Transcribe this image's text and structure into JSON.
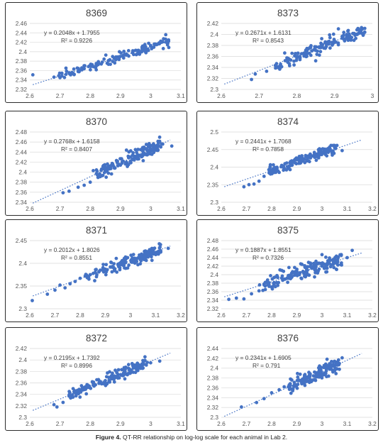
{
  "figure": {
    "caption_label": "Figure 4.",
    "caption_text": "QT-RR relationship on log-log scale for each animal in Lab 2."
  },
  "chart_data": [
    {
      "type": "scatter",
      "title": "8369",
      "equation": "y = 0.2048x + 1.7955",
      "r2_label": "R² = 0.9226",
      "trendline": {
        "slope": 0.2048,
        "intercept": 1.7955
      },
      "xlim": [
        2.6,
        3.1
      ],
      "xticks": [
        "2.6",
        "2.7",
        "2.8",
        "2.9",
        "3",
        "3.1"
      ],
      "ylim": [
        2.32,
        2.46
      ],
      "yticks": [
        "2.32",
        "2.34",
        "2.36",
        "2.38",
        "2.4",
        "2.42",
        "2.44",
        "2.46"
      ],
      "grid": true,
      "n_points": 120,
      "noise": 0.006,
      "points": [
        [
          2.61,
          2.351
        ],
        [
          2.68,
          2.346
        ],
        [
          2.7,
          2.345
        ],
        [
          2.72,
          2.352
        ],
        [
          2.74,
          2.356
        ],
        [
          2.76,
          2.358
        ],
        [
          2.78,
          2.364
        ],
        [
          2.8,
          2.371
        ],
        [
          2.82,
          2.375
        ],
        [
          2.84,
          2.378
        ],
        [
          2.86,
          2.381
        ],
        [
          2.88,
          2.386
        ],
        [
          2.9,
          2.39
        ],
        [
          2.92,
          2.395
        ],
        [
          2.94,
          2.398
        ],
        [
          2.96,
          2.403
        ],
        [
          2.98,
          2.407
        ],
        [
          3.0,
          2.412
        ],
        [
          3.02,
          2.415
        ],
        [
          3.04,
          2.421
        ],
        [
          3.05,
          2.436
        ],
        [
          3.06,
          2.409
        ]
      ],
      "xrange": [
        2.68,
        3.06
      ]
    },
    {
      "type": "scatter",
      "title": "8373",
      "equation": "y = 0.2671x + 1.6131",
      "r2_label": "R² = 0.8543",
      "trendline": {
        "slope": 0.2671,
        "intercept": 1.6131
      },
      "xlim": [
        2.6,
        3.0
      ],
      "xticks": [
        "2.6",
        "2.7",
        "2.8",
        "2.9",
        "3"
      ],
      "ylim": [
        2.3,
        2.42
      ],
      "yticks": [
        "2.3",
        "2.32",
        "2.34",
        "2.36",
        "2.38",
        "2.4",
        "2.42"
      ],
      "grid": true,
      "n_points": 140,
      "noise": 0.008,
      "points": [
        [
          2.68,
          2.318
        ],
        [
          2.69,
          2.328
        ],
        [
          2.72,
          2.333
        ],
        [
          2.75,
          2.341
        ],
        [
          2.78,
          2.347
        ],
        [
          2.8,
          2.357
        ],
        [
          2.82,
          2.365
        ],
        [
          2.84,
          2.37
        ],
        [
          2.86,
          2.376
        ],
        [
          2.88,
          2.383
        ],
        [
          2.9,
          2.388
        ],
        [
          2.92,
          2.393
        ],
        [
          2.94,
          2.397
        ],
        [
          2.96,
          2.4
        ],
        [
          2.98,
          2.404
        ],
        [
          2.91,
          2.41
        ],
        [
          2.85,
          2.352
        ]
      ],
      "xrange": [
        2.74,
        2.98
      ]
    },
    {
      "type": "scatter",
      "title": "8370",
      "equation": "y = 0.2768x + 1.6158",
      "r2_label": "R² = 0.8407",
      "trendline": {
        "slope": 0.2768,
        "intercept": 1.6158
      },
      "xlim": [
        2.6,
        3.1
      ],
      "xticks": [
        "2.6",
        "2.7",
        "2.8",
        "2.9",
        "3",
        "3.1"
      ],
      "ylim": [
        2.34,
        2.48
      ],
      "yticks": [
        "2.34",
        "2.36",
        "2.38",
        "2.4",
        "2.42",
        "2.44",
        "2.46",
        "2.48"
      ],
      "grid": true,
      "n_points": 140,
      "noise": 0.008,
      "points": [
        [
          2.71,
          2.359
        ],
        [
          2.73,
          2.362
        ],
        [
          2.76,
          2.37
        ],
        [
          2.78,
          2.374
        ],
        [
          2.8,
          2.38
        ],
        [
          2.81,
          2.403
        ],
        [
          2.84,
          2.393
        ],
        [
          2.86,
          2.398
        ],
        [
          2.88,
          2.408
        ],
        [
          2.9,
          2.414
        ],
        [
          2.92,
          2.42
        ],
        [
          2.94,
          2.425
        ],
        [
          2.96,
          2.432
        ],
        [
          2.98,
          2.437
        ],
        [
          3.0,
          2.442
        ],
        [
          3.02,
          2.447
        ],
        [
          3.07,
          2.452
        ],
        [
          2.92,
          2.444
        ]
      ],
      "xrange": [
        2.82,
        3.04
      ]
    },
    {
      "type": "scatter",
      "title": "8374",
      "equation": "y = 0.2441x + 1.7068",
      "r2_label": "R² = 0.7858",
      "trendline": {
        "slope": 0.2441,
        "intercept": 1.7068
      },
      "xlim": [
        2.6,
        3.2
      ],
      "xticks": [
        "2.6",
        "2.7",
        "2.8",
        "2.9",
        "3",
        "3.1",
        "3.2"
      ],
      "ylim": [
        2.3,
        2.5
      ],
      "yticks": [
        "2.3",
        "2.35",
        "2.4",
        "2.45",
        "2.5"
      ],
      "grid": true,
      "n_points": 150,
      "noise": 0.009,
      "points": [
        [
          2.69,
          2.344
        ],
        [
          2.71,
          2.35
        ],
        [
          2.73,
          2.352
        ],
        [
          2.75,
          2.36
        ],
        [
          2.77,
          2.374
        ],
        [
          2.8,
          2.389
        ],
        [
          2.82,
          2.397
        ],
        [
          2.84,
          2.405
        ],
        [
          2.86,
          2.412
        ],
        [
          2.88,
          2.418
        ],
        [
          2.9,
          2.421
        ],
        [
          2.92,
          2.426
        ],
        [
          2.95,
          2.432
        ],
        [
          2.98,
          2.437
        ],
        [
          3.01,
          2.44
        ],
        [
          3.04,
          2.444
        ],
        [
          3.08,
          2.447
        ],
        [
          2.83,
          2.385
        ]
      ],
      "xrange": [
        2.78,
        3.06
      ]
    },
    {
      "type": "scatter",
      "title": "8371",
      "equation": "y = 0.2012x + 1.8026",
      "r2_label": "R² = 0.8551",
      "trendline": {
        "slope": 0.2012,
        "intercept": 1.8026
      },
      "xlim": [
        2.6,
        3.2
      ],
      "xticks": [
        "2.6",
        "2.7",
        "2.8",
        "2.9",
        "3",
        "3.1",
        "3.2"
      ],
      "ylim": [
        2.3,
        2.45
      ],
      "yticks": [
        "2.3",
        "2.35",
        "2.4",
        "2.45"
      ],
      "grid": true,
      "n_points": 150,
      "noise": 0.008,
      "points": [
        [
          2.61,
          2.318
        ],
        [
          2.67,
          2.332
        ],
        [
          2.7,
          2.341
        ],
        [
          2.72,
          2.352
        ],
        [
          2.74,
          2.346
        ],
        [
          2.76,
          2.355
        ],
        [
          2.78,
          2.36
        ],
        [
          2.8,
          2.367
        ],
        [
          2.82,
          2.372
        ],
        [
          2.84,
          2.375
        ],
        [
          2.86,
          2.38
        ],
        [
          2.88,
          2.385
        ],
        [
          2.9,
          2.387
        ],
        [
          2.92,
          2.392
        ],
        [
          2.95,
          2.398
        ],
        [
          2.98,
          2.403
        ],
        [
          3.01,
          2.409
        ],
        [
          3.05,
          2.415
        ],
        [
          3.09,
          2.421
        ],
        [
          3.12,
          2.427
        ],
        [
          3.15,
          2.433
        ]
      ],
      "xrange": [
        2.82,
        3.12
      ]
    },
    {
      "type": "scatter",
      "title": "8375",
      "equation": "y = 0.1887x + 1.8551",
      "r2_label": "R² = 0.7326",
      "trendline": {
        "slope": 0.1887,
        "intercept": 1.8551
      },
      "xlim": [
        2.6,
        3.2
      ],
      "xticks": [
        "2.6",
        "2.7",
        "2.8",
        "2.9",
        "3",
        "3.1",
        "3.2"
      ],
      "ylim": [
        2.32,
        2.48
      ],
      "yticks": [
        "2.32",
        "2.34",
        "2.36",
        "2.38",
        "2.4",
        "2.42",
        "2.44",
        "2.46",
        "2.48"
      ],
      "grid": true,
      "n_points": 150,
      "noise": 0.012,
      "points": [
        [
          2.63,
          2.342
        ],
        [
          2.66,
          2.345
        ],
        [
          2.69,
          2.343
        ],
        [
          2.72,
          2.355
        ],
        [
          2.75,
          2.362
        ],
        [
          2.77,
          2.378
        ],
        [
          2.8,
          2.371
        ],
        [
          2.82,
          2.381
        ],
        [
          2.85,
          2.389
        ],
        [
          2.88,
          2.394
        ],
        [
          2.91,
          2.4
        ],
        [
          2.94,
          2.404
        ],
        [
          2.97,
          2.413
        ],
        [
          3.0,
          2.42
        ],
        [
          3.03,
          2.426
        ],
        [
          3.06,
          2.431
        ],
        [
          3.1,
          2.44
        ],
        [
          3.12,
          2.457
        ],
        [
          3.0,
          2.447
        ],
        [
          2.84,
          2.41
        ]
      ],
      "xrange": [
        2.75,
        3.08
      ]
    },
    {
      "type": "scatter",
      "title": "8372",
      "equation": "y = 0.2195x + 1.7392",
      "r2_label": "R² = 0.8996",
      "trendline": {
        "slope": 0.2195,
        "intercept": 1.7392
      },
      "xlim": [
        2.6,
        3.1
      ],
      "xticks": [
        "2.6",
        "2.7",
        "2.8",
        "2.9",
        "3",
        "3.1"
      ],
      "ylim": [
        2.3,
        2.42
      ],
      "yticks": [
        "2.3",
        "2.32",
        "2.34",
        "2.36",
        "2.38",
        "2.4",
        "2.42"
      ],
      "grid": true,
      "n_points": 150,
      "noise": 0.006,
      "points": [
        [
          2.68,
          2.322
        ],
        [
          2.69,
          2.318
        ],
        [
          2.71,
          2.326
        ],
        [
          2.73,
          2.337
        ],
        [
          2.75,
          2.343
        ],
        [
          2.77,
          2.348
        ],
        [
          2.79,
          2.352
        ],
        [
          2.81,
          2.356
        ],
        [
          2.83,
          2.36
        ],
        [
          2.85,
          2.364
        ],
        [
          2.87,
          2.369
        ],
        [
          2.89,
          2.372
        ],
        [
          2.91,
          2.377
        ],
        [
          2.93,
          2.382
        ],
        [
          2.95,
          2.386
        ],
        [
          2.97,
          2.39
        ],
        [
          3.0,
          2.395
        ],
        [
          3.03,
          2.398
        ]
      ],
      "xrange": [
        2.72,
        2.99
      ]
    },
    {
      "type": "scatter",
      "title": "8376",
      "equation": "y = 0.2341x + 1.6905",
      "r2_label": "R² = 0.791",
      "trendline": {
        "slope": 0.2341,
        "intercept": 1.6905
      },
      "xlim": [
        2.6,
        3.2
      ],
      "xticks": [
        "2.6",
        "2.7",
        "2.8",
        "2.9",
        "3",
        "3.1",
        "3.2"
      ],
      "ylim": [
        2.3,
        2.44
      ],
      "yticks": [
        "2.3",
        "2.32",
        "2.34",
        "2.36",
        "2.38",
        "2.4",
        "2.42",
        "2.44"
      ],
      "grid": true,
      "n_points": 130,
      "noise": 0.009,
      "points": [
        [
          2.68,
          2.321
        ],
        [
          2.74,
          2.33
        ],
        [
          2.77,
          2.338
        ],
        [
          2.8,
          2.35
        ],
        [
          2.83,
          2.356
        ],
        [
          2.85,
          2.362
        ],
        [
          2.87,
          2.366
        ],
        [
          2.89,
          2.371
        ],
        [
          2.91,
          2.375
        ],
        [
          2.93,
          2.381
        ],
        [
          2.95,
          2.386
        ],
        [
          2.97,
          2.392
        ],
        [
          2.99,
          2.397
        ],
        [
          3.01,
          2.403
        ],
        [
          3.03,
          2.409
        ],
        [
          3.05,
          2.414
        ],
        [
          3.08,
          2.421
        ],
        [
          3.02,
          2.418
        ],
        [
          2.95,
          2.371
        ]
      ],
      "xrange": [
        2.86,
        3.07
      ]
    }
  ]
}
